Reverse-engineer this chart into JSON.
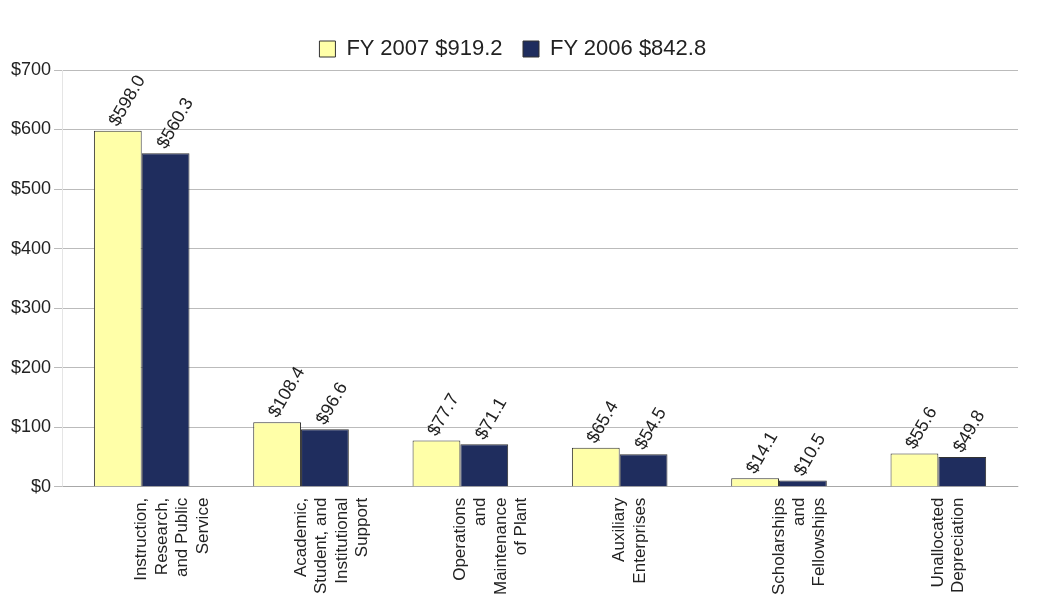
{
  "chart_data": {
    "type": "bar",
    "categories": [
      "Instruction, Research, and Public Service",
      "Academic, Student, and Institutional Support",
      "Operations and Maintenance of Plant",
      "Auxiliary Enterprises",
      "Scholarships and Fellowships",
      "Unallocated Depreciation"
    ],
    "series": [
      {
        "name": "FY 2007 $919.2",
        "color": "#ffffa8",
        "values": [
          598.0,
          108.4,
          77.7,
          65.4,
          14.1,
          55.6
        ],
        "value_labels": [
          "$598.0",
          "$108.4",
          "$77.7",
          "$65.4",
          "$14.1",
          "$55.6"
        ]
      },
      {
        "name": "FY 2006 $842.8",
        "color": "#1f2d5e",
        "values": [
          560.3,
          96.6,
          71.1,
          54.5,
          10.5,
          49.8
        ],
        "value_labels": [
          "$560.3",
          "$96.6",
          "$71.1",
          "$54.5",
          "$10.5",
          "$49.8"
        ]
      }
    ],
    "ylim": [
      0,
      700
    ],
    "yticks": [
      {
        "value": 0,
        "label": "$0"
      },
      {
        "value": 100,
        "label": "$100"
      },
      {
        "value": 200,
        "label": "$200"
      },
      {
        "value": 300,
        "label": "$300"
      },
      {
        "value": 400,
        "label": "$400"
      },
      {
        "value": 500,
        "label": "$500"
      },
      {
        "value": 600,
        "label": "$600"
      },
      {
        "value": 700,
        "label": "$700"
      }
    ],
    "grid": "y",
    "legend": "top"
  }
}
